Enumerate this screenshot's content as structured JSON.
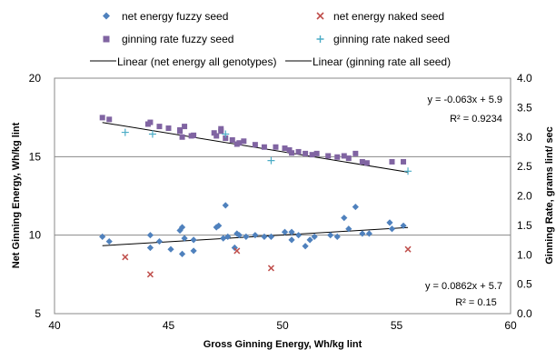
{
  "chart_data": {
    "type": "scatter",
    "title": "",
    "xlabel": "Gross Ginning Energy, Wh/kg lint",
    "ylabel_left": "Net Ginning Energy, Wh/kg lint",
    "ylabel_right": "Ginning Rate, grams lint/ sec",
    "xlim": [
      40,
      60
    ],
    "ylim_left": [
      5,
      20
    ],
    "ylim_right": [
      0,
      4
    ],
    "x_ticks": [
      "40",
      "45",
      "50",
      "55",
      "60"
    ],
    "y_left_ticks": [
      "5",
      "10",
      "15",
      "20"
    ],
    "y_right_ticks": [
      "0.0",
      "0.5",
      "1.0",
      "1.5",
      "2.0",
      "2.5",
      "3.0",
      "3.5",
      "4.0"
    ],
    "gridlines_left": [
      10,
      15
    ],
    "legend_placement": "top",
    "legend": [
      {
        "label": "net energy fuzzy seed",
        "marker": "diamond",
        "color": "#4f81bd"
      },
      {
        "label": "net energy naked seed",
        "marker": "x",
        "color": "#c0504d"
      },
      {
        "label": "ginning rate fuzzy seed",
        "marker": "square",
        "color": "#8064a2"
      },
      {
        "label": "ginning rate naked seed",
        "marker": "plus",
        "color": "#4bacc6"
      },
      {
        "label": "Linear (net energy all genotypes)",
        "marker": "line",
        "color": "#000000"
      },
      {
        "label": "Linear (ginning rate all seed)",
        "marker": "line",
        "color": "#000000"
      }
    ],
    "series": [
      {
        "name": "net energy fuzzy seed",
        "axis": "left",
        "marker": "diamond",
        "color": "#4f81bd",
        "points": [
          [
            42.1,
            9.9
          ],
          [
            42.4,
            9.6
          ],
          [
            44.2,
            10.0
          ],
          [
            44.2,
            9.2
          ],
          [
            44.6,
            9.6
          ],
          [
            45.1,
            9.1
          ],
          [
            45.5,
            10.3
          ],
          [
            45.6,
            10.5
          ],
          [
            45.6,
            8.8
          ],
          [
            45.7,
            9.8
          ],
          [
            46.1,
            9.0
          ],
          [
            46.1,
            9.7
          ],
          [
            47.1,
            10.5
          ],
          [
            47.2,
            10.6
          ],
          [
            47.4,
            9.8
          ],
          [
            47.5,
            11.9
          ],
          [
            47.6,
            9.9
          ],
          [
            47.9,
            9.2
          ],
          [
            48.0,
            10.1
          ],
          [
            48.1,
            10.0
          ],
          [
            48.4,
            9.9
          ],
          [
            48.8,
            10.0
          ],
          [
            49.2,
            9.9
          ],
          [
            49.5,
            9.9
          ],
          [
            50.1,
            10.2
          ],
          [
            50.4,
            10.2
          ],
          [
            50.4,
            9.7
          ],
          [
            50.7,
            10.0
          ],
          [
            51.0,
            9.3
          ],
          [
            51.2,
            9.7
          ],
          [
            51.4,
            9.9
          ],
          [
            52.1,
            10.0
          ],
          [
            52.4,
            9.9
          ],
          [
            52.7,
            11.1
          ],
          [
            52.9,
            10.4
          ],
          [
            53.2,
            11.8
          ],
          [
            53.5,
            10.1
          ],
          [
            53.8,
            10.1
          ],
          [
            54.7,
            10.8
          ],
          [
            54.8,
            10.4
          ],
          [
            55.3,
            10.6
          ]
        ]
      },
      {
        "name": "net energy naked seed",
        "axis": "left",
        "marker": "x",
        "color": "#c0504d",
        "points": [
          [
            43.1,
            8.6
          ],
          [
            44.2,
            7.5
          ],
          [
            48.0,
            9.0
          ],
          [
            49.5,
            7.9
          ],
          [
            55.5,
            9.1
          ]
        ]
      },
      {
        "name": "ginning rate fuzzy seed",
        "axis": "right",
        "marker": "square",
        "color": "#8064a2",
        "points": [
          [
            42.1,
            3.33
          ],
          [
            42.4,
            3.3
          ],
          [
            44.1,
            3.22
          ],
          [
            44.2,
            3.25
          ],
          [
            44.6,
            3.18
          ],
          [
            45.0,
            3.15
          ],
          [
            45.5,
            3.12
          ],
          [
            45.5,
            3.1
          ],
          [
            45.6,
            3.0
          ],
          [
            45.7,
            3.18
          ],
          [
            46.0,
            3.02
          ],
          [
            46.1,
            3.03
          ],
          [
            47.0,
            3.07
          ],
          [
            47.1,
            3.02
          ],
          [
            47.3,
            3.1
          ],
          [
            47.3,
            3.14
          ],
          [
            47.5,
            2.98
          ],
          [
            47.8,
            2.95
          ],
          [
            48.0,
            2.88
          ],
          [
            48.1,
            2.9
          ],
          [
            48.3,
            2.93
          ],
          [
            48.8,
            2.87
          ],
          [
            49.2,
            2.83
          ],
          [
            49.7,
            2.83
          ],
          [
            50.1,
            2.81
          ],
          [
            50.3,
            2.78
          ],
          [
            50.4,
            2.73
          ],
          [
            50.7,
            2.75
          ],
          [
            51.0,
            2.72
          ],
          [
            51.3,
            2.7
          ],
          [
            51.5,
            2.72
          ],
          [
            52.0,
            2.68
          ],
          [
            52.4,
            2.66
          ],
          [
            52.7,
            2.68
          ],
          [
            52.9,
            2.64
          ],
          [
            53.2,
            2.72
          ],
          [
            53.5,
            2.58
          ],
          [
            53.7,
            2.56
          ],
          [
            54.8,
            2.58
          ],
          [
            55.3,
            2.58
          ]
        ]
      },
      {
        "name": "ginning rate naked seed",
        "axis": "right",
        "marker": "plus",
        "color": "#4bacc6",
        "points": [
          [
            43.1,
            3.08
          ],
          [
            44.3,
            3.05
          ],
          [
            47.5,
            3.05
          ],
          [
            49.5,
            2.6
          ],
          [
            55.5,
            2.42
          ]
        ]
      }
    ],
    "trendlines": [
      {
        "name": "Linear (net energy all genotypes)",
        "axis": "left",
        "slope": 0.0862,
        "intercept": 5.7,
        "x_range": [
          42.1,
          55.5
        ]
      },
      {
        "name": "Linear (ginning rate all seed)",
        "axis": "right",
        "slope": -0.063,
        "intercept": 5.9,
        "x_range": [
          42.1,
          55.5
        ]
      }
    ],
    "annotations": [
      {
        "id": "rate_eq",
        "text": "y = -0.063x + 5.9"
      },
      {
        "id": "rate_r2",
        "text": "R² = 0.9234"
      },
      {
        "id": "energy_eq",
        "text": "y = 0.0862x + 5.7"
      },
      {
        "id": "energy_r2",
        "text": "R² = 0.15"
      }
    ]
  }
}
